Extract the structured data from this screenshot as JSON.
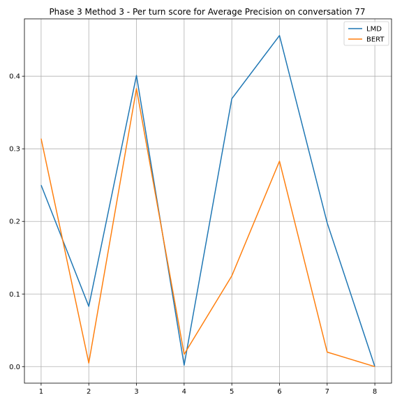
{
  "chart_data": {
    "type": "line",
    "title": "Phase 3 Method 3 - Per turn score for Average Precision on conversation 77",
    "xlabel": "",
    "ylabel": "",
    "x": [
      1,
      2,
      3,
      4,
      5,
      6,
      7,
      8
    ],
    "x_ticks": [
      "1",
      "2",
      "3",
      "4",
      "5",
      "6",
      "7",
      "8"
    ],
    "y_ticks": [
      "0.0",
      "0.1",
      "0.2",
      "0.3",
      "0.4"
    ],
    "xlim": [
      0.65,
      8.35
    ],
    "ylim": [
      -0.0228,
      0.479
    ],
    "grid": true,
    "legend_position": "top-right",
    "series": [
      {
        "name": "LMD",
        "color": "#1f77b4",
        "values": [
          0.25,
          0.083,
          0.401,
          0.002,
          0.369,
          0.456,
          0.198,
          0.0
        ]
      },
      {
        "name": "BERT",
        "color": "#ff7f0e",
        "values": [
          0.314,
          0.005,
          0.383,
          0.017,
          0.125,
          0.283,
          0.02,
          0.0
        ]
      }
    ]
  }
}
